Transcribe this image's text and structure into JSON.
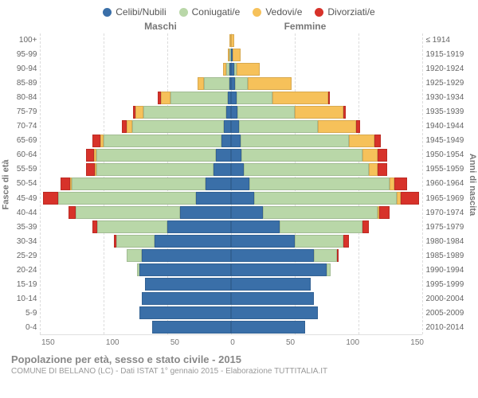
{
  "legend": [
    {
      "label": "Celibi/Nubili",
      "color": "#3a6fa8"
    },
    {
      "label": "Coniugati/e",
      "color": "#b9d7a8"
    },
    {
      "label": "Vedovi/e",
      "color": "#f6c15a"
    },
    {
      "label": "Divorziati/e",
      "color": "#d7322a"
    }
  ],
  "headers": {
    "left": "Maschi",
    "right": "Femmine"
  },
  "axis_labels": {
    "left": "Fasce di età",
    "right": "Anni di nascita"
  },
  "caption": {
    "title": "Popolazione per età, sesso e stato civile - 2015",
    "sub": "COMUNE DI BELLANO (LC) - Dati ISTAT 1° gennaio 2015 - Elaborazione TUTTITALIA.IT"
  },
  "age_groups": [
    "100+",
    "95-99",
    "90-94",
    "85-89",
    "80-84",
    "75-79",
    "70-74",
    "65-69",
    "60-64",
    "55-59",
    "50-54",
    "45-49",
    "40-44",
    "35-39",
    "30-34",
    "25-29",
    "20-24",
    "15-19",
    "10-14",
    "5-9",
    "0-4"
  ],
  "birth_years": [
    "≤ 1914",
    "1915-1919",
    "1920-1924",
    "1925-1929",
    "1930-1934",
    "1935-1939",
    "1940-1944",
    "1945-1949",
    "1950-1954",
    "1955-1959",
    "1960-1964",
    "1965-1969",
    "1970-1974",
    "1975-1979",
    "1980-1984",
    "1985-1989",
    "1990-1994",
    "1995-1999",
    "2000-2004",
    "2005-2009",
    "2010-2014"
  ],
  "xmax": 150,
  "xticks_left": [
    "150",
    "100",
    "50",
    "0"
  ],
  "xticks_right": [
    "0",
    "50",
    "100",
    "150"
  ],
  "scale": 1.6,
  "rows": [
    {
      "m": {
        "cel": 0,
        "con": 0,
        "ved": 1,
        "div": 0
      },
      "f": {
        "cel": 0,
        "con": 0,
        "ved": 2,
        "div": 0
      }
    },
    {
      "m": {
        "cel": 0,
        "con": 1,
        "ved": 1,
        "div": 0
      },
      "f": {
        "cel": 1,
        "con": 0,
        "ved": 6,
        "div": 0
      }
    },
    {
      "m": {
        "cel": 1,
        "con": 3,
        "ved": 2,
        "div": 0
      },
      "f": {
        "cel": 2,
        "con": 2,
        "ved": 18,
        "div": 0
      }
    },
    {
      "m": {
        "cel": 1,
        "con": 20,
        "ved": 5,
        "div": 0
      },
      "f": {
        "cel": 3,
        "con": 10,
        "ved": 34,
        "div": 0
      }
    },
    {
      "m": {
        "cel": 3,
        "con": 45,
        "ved": 7,
        "div": 3
      },
      "f": {
        "cel": 4,
        "con": 28,
        "ved": 44,
        "div": 1
      }
    },
    {
      "m": {
        "cel": 4,
        "con": 65,
        "ved": 6,
        "div": 2
      },
      "f": {
        "cel": 5,
        "con": 45,
        "ved": 38,
        "div": 2
      }
    },
    {
      "m": {
        "cel": 6,
        "con": 72,
        "ved": 4,
        "div": 4
      },
      "f": {
        "cel": 6,
        "con": 62,
        "ved": 30,
        "div": 3
      }
    },
    {
      "m": {
        "cel": 8,
        "con": 92,
        "ved": 3,
        "div": 6
      },
      "f": {
        "cel": 7,
        "con": 85,
        "ved": 20,
        "div": 5
      }
    },
    {
      "m": {
        "cel": 12,
        "con": 94,
        "ved": 2,
        "div": 6
      },
      "f": {
        "cel": 8,
        "con": 95,
        "ved": 12,
        "div": 7
      }
    },
    {
      "m": {
        "cel": 14,
        "con": 92,
        "ved": 1,
        "div": 7
      },
      "f": {
        "cel": 10,
        "con": 98,
        "ved": 7,
        "div": 7
      }
    },
    {
      "m": {
        "cel": 20,
        "con": 105,
        "ved": 1,
        "div": 8
      },
      "f": {
        "cel": 14,
        "con": 110,
        "ved": 4,
        "div": 10
      }
    },
    {
      "m": {
        "cel": 28,
        "con": 108,
        "ved": 0,
        "div": 12
      },
      "f": {
        "cel": 18,
        "con": 112,
        "ved": 3,
        "div": 14
      }
    },
    {
      "m": {
        "cel": 40,
        "con": 82,
        "ved": 0,
        "div": 6
      },
      "f": {
        "cel": 25,
        "con": 90,
        "ved": 1,
        "div": 8
      }
    },
    {
      "m": {
        "cel": 50,
        "con": 55,
        "ved": 0,
        "div": 4
      },
      "f": {
        "cel": 38,
        "con": 65,
        "ved": 0,
        "div": 5
      }
    },
    {
      "m": {
        "cel": 60,
        "con": 30,
        "ved": 0,
        "div": 2
      },
      "f": {
        "cel": 50,
        "con": 38,
        "ved": 0,
        "div": 4
      }
    },
    {
      "m": {
        "cel": 70,
        "con": 12,
        "ved": 0,
        "div": 0
      },
      "f": {
        "cel": 65,
        "con": 18,
        "ved": 0,
        "div": 1
      }
    },
    {
      "m": {
        "cel": 72,
        "con": 2,
        "ved": 0,
        "div": 0
      },
      "f": {
        "cel": 75,
        "con": 3,
        "ved": 0,
        "div": 0
      }
    },
    {
      "m": {
        "cel": 68,
        "con": 0,
        "ved": 0,
        "div": 0
      },
      "f": {
        "cel": 62,
        "con": 0,
        "ved": 0,
        "div": 0
      }
    },
    {
      "m": {
        "cel": 70,
        "con": 0,
        "ved": 0,
        "div": 0
      },
      "f": {
        "cel": 65,
        "con": 0,
        "ved": 0,
        "div": 0
      }
    },
    {
      "m": {
        "cel": 72,
        "con": 0,
        "ved": 0,
        "div": 0
      },
      "f": {
        "cel": 68,
        "con": 0,
        "ved": 0,
        "div": 0
      }
    },
    {
      "m": {
        "cel": 62,
        "con": 0,
        "ved": 0,
        "div": 0
      },
      "f": {
        "cel": 58,
        "con": 0,
        "ved": 0,
        "div": 0
      }
    }
  ],
  "grid_positions": [
    -150,
    -100,
    -50,
    0,
    50,
    100,
    150
  ],
  "background": "#ffffff"
}
